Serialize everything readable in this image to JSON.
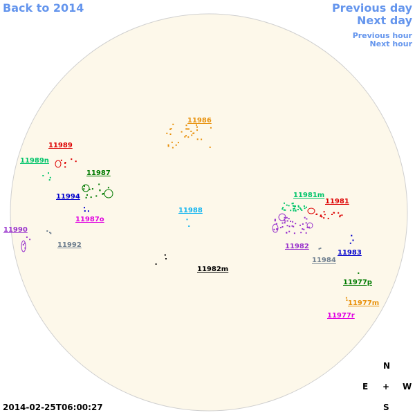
{
  "nav": {
    "back": "Back to 2014",
    "previous_day": "Previous day",
    "next_day": "Next day",
    "previous_hour": "Previous hour",
    "next_hour": "Next hour"
  },
  "regions": [
    {
      "label": "11986",
      "color": "#e8900a"
    },
    {
      "label": "11989",
      "color": "#dd0000"
    },
    {
      "label": "11989n",
      "color": "#00c46a"
    },
    {
      "label": "11987",
      "color": "#007a00"
    },
    {
      "label": "11994",
      "color": "#0000cc"
    },
    {
      "label": "11987o",
      "color": "#e000e0"
    },
    {
      "label": "11988",
      "color": "#10b4f0"
    },
    {
      "label": "11990",
      "color": "#9933cc"
    },
    {
      "label": "11992",
      "color": "#708090"
    },
    {
      "label": "11981m",
      "color": "#00c46a"
    },
    {
      "label": "11981",
      "color": "#dd0000"
    },
    {
      "label": "11982",
      "color": "#9933cc"
    },
    {
      "label": "11984",
      "color": "#708090"
    },
    {
      "label": "11983",
      "color": "#0000cc"
    },
    {
      "label": "11982m",
      "color": "#000000"
    },
    {
      "label": "11977p",
      "color": "#007a00"
    },
    {
      "label": "11977m",
      "color": "#e8900a"
    },
    {
      "label": "11977r",
      "color": "#e000e0"
    }
  ],
  "compass": {
    "north": "N",
    "east": "E",
    "center": "+",
    "west": "W",
    "south": "S"
  },
  "timestamp": "2014-02-25T06:00:27"
}
